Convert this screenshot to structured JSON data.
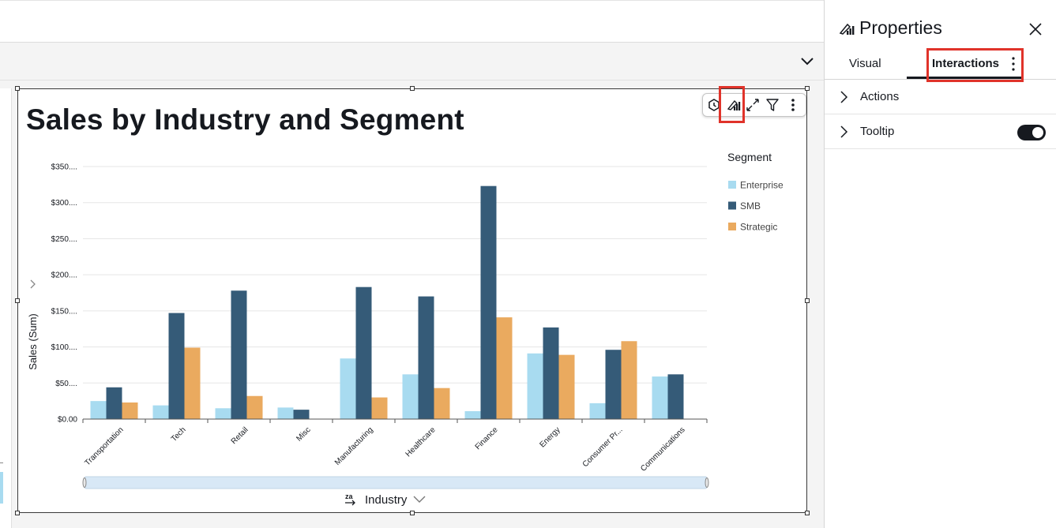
{
  "properties": {
    "title": "Properties",
    "tabs": [
      {
        "label": "Visual",
        "active": false
      },
      {
        "label": "Interactions",
        "active": true
      }
    ],
    "sections": [
      {
        "label": "Actions",
        "has_toggle": false
      },
      {
        "label": "Tooltip",
        "has_toggle": true,
        "toggle_on": true
      }
    ]
  },
  "visual": {
    "title": "Sales by Industry and Segment",
    "toolbar_icons": [
      "insights-icon",
      "format-visual-icon",
      "expand-icon",
      "filter-icon",
      "more-vertical-icon"
    ]
  },
  "colors": {
    "enterprise": "#a8dbf0",
    "smb": "#355b78",
    "strategic": "#eaaa5f",
    "highlight": "#e0332a",
    "scroll_track": "#d8e8f6"
  },
  "chart_data": {
    "type": "bar",
    "title": "Sales by Industry and Segment",
    "xlabel": "Industry",
    "ylabel": "Sales (Sum)",
    "ylim": [
      0,
      350
    ],
    "yticks": [
      "$0.00",
      "$50....",
      "$100....",
      "$150....",
      "$200....",
      "$250....",
      "$300....",
      "$350...."
    ],
    "grid": true,
    "legend_title": "Segment",
    "legend_position": "right",
    "categories": [
      "Transportation",
      "Tech",
      "Retail",
      "Misc",
      "Manufacturing",
      "Healthcare",
      "Finance",
      "Energy",
      "Consumer Pr...",
      "Communications"
    ],
    "series": [
      {
        "name": "Enterprise",
        "values": [
          25,
          19,
          15,
          16,
          84,
          62,
          11,
          91,
          22,
          59
        ]
      },
      {
        "name": "SMB",
        "values": [
          44,
          147,
          178,
          13,
          183,
          170,
          323,
          127,
          96,
          62
        ]
      },
      {
        "name": "Strategic",
        "values": [
          23,
          99,
          32,
          null,
          30,
          43,
          141,
          89,
          108,
          null
        ]
      }
    ]
  }
}
